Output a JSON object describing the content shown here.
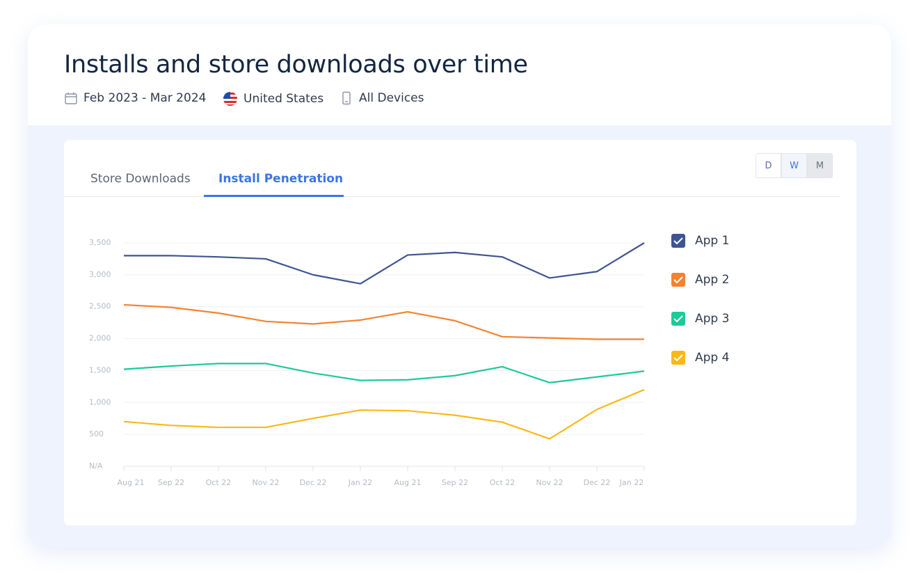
{
  "header": {
    "title": "Installs and store downloads over time",
    "date_range": "Feb 2023 - Mar 2024",
    "country": "United States",
    "devices": "All Devices"
  },
  "tabs": [
    "Store Downloads",
    "Install Penetration"
  ],
  "granularity": [
    "D",
    "W",
    "M"
  ],
  "chart_data": {
    "type": "line",
    "categories": [
      "Aug 21",
      "Sep 22",
      "Oct 22",
      "Nov 22",
      "Dec 22",
      "Jan 22",
      "Aug 21",
      "Sep 22",
      "Oct 22",
      "Nov 22",
      "Dec 22",
      "Jan 22"
    ],
    "series": [
      {
        "name": "App 1",
        "color": "#3f5490",
        "values": [
          3300,
          3300,
          3280,
          3250,
          3000,
          2860,
          3310,
          3350,
          3280,
          2950,
          3050,
          3500
        ]
      },
      {
        "name": "App 2",
        "color": "#f5822f",
        "values": [
          2530,
          2490,
          2400,
          2270,
          2230,
          2290,
          2420,
          2280,
          2030,
          2010,
          1990,
          1990
        ]
      },
      {
        "name": "App 3",
        "color": "#1ec99a",
        "values": [
          1520,
          1570,
          1610,
          1610,
          1460,
          1345,
          1355,
          1420,
          1560,
          1310,
          1400,
          1490
        ]
      },
      {
        "name": "App 4",
        "color": "#fbb817",
        "values": [
          700,
          640,
          610,
          610,
          750,
          880,
          870,
          800,
          690,
          430,
          890,
          1200
        ]
      }
    ],
    "ylim": [
      0,
      3500
    ],
    "yticks": [
      {
        "value": 0,
        "label": "N/A"
      },
      500,
      {
        "value": 1000,
        "label": "1,000"
      },
      {
        "value": 1500,
        "label": "1,500"
      },
      {
        "value": 2000,
        "label": "2,000"
      },
      {
        "value": 2500,
        "label": "2,500"
      },
      {
        "value": 3000,
        "label": "3,000"
      },
      {
        "value": 3500,
        "label": "3,500"
      }
    ],
    "grid": true
  }
}
